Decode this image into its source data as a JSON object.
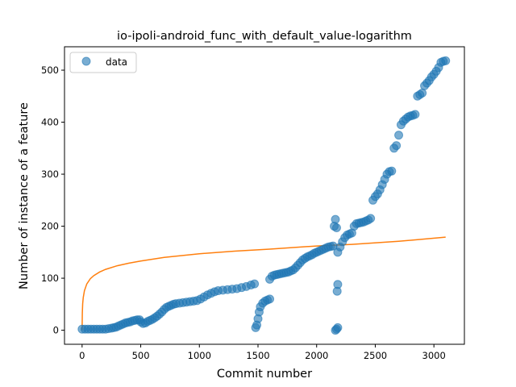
{
  "chart_data": {
    "type": "scatter",
    "title": "io-ipoli-android_func_with_default_value-logarithm",
    "xlabel": "Commit number",
    "ylabel": "Number of instance of a feature",
    "xlim": [
      -150,
      3260
    ],
    "ylim": [
      -27,
      545
    ],
    "x_ticks": [
      0,
      500,
      1000,
      1500,
      2000,
      2500,
      3000
    ],
    "y_ticks": [
      0,
      100,
      200,
      300,
      400,
      500
    ],
    "grid": false,
    "legend": {
      "position": "upper-left",
      "entries": [
        {
          "label": "data",
          "marker": "circle",
          "color": "#1f77b4"
        }
      ]
    },
    "colors": {
      "data": "#1f77b4",
      "fit": "#ff7f0e"
    },
    "series": [
      {
        "name": "data",
        "kind": "scatter",
        "points": [
          [
            0,
            2
          ],
          [
            25,
            2
          ],
          [
            50,
            2
          ],
          [
            75,
            2
          ],
          [
            100,
            2
          ],
          [
            125,
            2
          ],
          [
            150,
            2
          ],
          [
            175,
            2
          ],
          [
            200,
            2
          ],
          [
            225,
            3
          ],
          [
            250,
            4
          ],
          [
            270,
            5
          ],
          [
            290,
            6
          ],
          [
            310,
            8
          ],
          [
            330,
            10
          ],
          [
            350,
            12
          ],
          [
            370,
            14
          ],
          [
            390,
            15
          ],
          [
            410,
            16
          ],
          [
            430,
            18
          ],
          [
            450,
            19
          ],
          [
            470,
            20
          ],
          [
            490,
            20
          ],
          [
            500,
            16
          ],
          [
            520,
            13
          ],
          [
            540,
            14
          ],
          [
            560,
            17
          ],
          [
            580,
            19
          ],
          [
            600,
            21
          ],
          [
            620,
            24
          ],
          [
            640,
            27
          ],
          [
            660,
            31
          ],
          [
            680,
            35
          ],
          [
            700,
            40
          ],
          [
            720,
            44
          ],
          [
            740,
            46
          ],
          [
            760,
            48
          ],
          [
            780,
            50
          ],
          [
            800,
            51
          ],
          [
            830,
            52
          ],
          [
            860,
            53
          ],
          [
            890,
            54
          ],
          [
            920,
            55
          ],
          [
            950,
            56
          ],
          [
            980,
            57
          ],
          [
            1010,
            60
          ],
          [
            1040,
            64
          ],
          [
            1070,
            68
          ],
          [
            1100,
            71
          ],
          [
            1130,
            74
          ],
          [
            1160,
            76
          ],
          [
            1200,
            77
          ],
          [
            1240,
            78
          ],
          [
            1280,
            79
          ],
          [
            1320,
            80
          ],
          [
            1360,
            82
          ],
          [
            1400,
            84
          ],
          [
            1440,
            87
          ],
          [
            1470,
            89
          ],
          [
            1480,
            5
          ],
          [
            1490,
            10
          ],
          [
            1500,
            22
          ],
          [
            1510,
            35
          ],
          [
            1520,
            45
          ],
          [
            1540,
            52
          ],
          [
            1560,
            56
          ],
          [
            1580,
            58
          ],
          [
            1600,
            60
          ],
          [
            1600,
            98
          ],
          [
            1620,
            104
          ],
          [
            1640,
            106
          ],
          [
            1660,
            107
          ],
          [
            1680,
            108
          ],
          [
            1700,
            109
          ],
          [
            1720,
            110
          ],
          [
            1740,
            111
          ],
          [
            1760,
            112
          ],
          [
            1780,
            114
          ],
          [
            1800,
            116
          ],
          [
            1820,
            120
          ],
          [
            1840,
            125
          ],
          [
            1860,
            130
          ],
          [
            1880,
            135
          ],
          [
            1900,
            138
          ],
          [
            1920,
            141
          ],
          [
            1940,
            143
          ],
          [
            1960,
            145
          ],
          [
            1980,
            148
          ],
          [
            2000,
            150
          ],
          [
            2020,
            152
          ],
          [
            2040,
            154
          ],
          [
            2060,
            156
          ],
          [
            2080,
            158
          ],
          [
            2100,
            160
          ],
          [
            2120,
            161
          ],
          [
            2140,
            162
          ],
          [
            2150,
            200
          ],
          [
            2160,
            213
          ],
          [
            2170,
            197
          ],
          [
            2160,
            0
          ],
          [
            2170,
            2
          ],
          [
            2180,
            5
          ],
          [
            2175,
            75
          ],
          [
            2180,
            88
          ],
          [
            2180,
            150
          ],
          [
            2200,
            160
          ],
          [
            2220,
            170
          ],
          [
            2240,
            178
          ],
          [
            2260,
            183
          ],
          [
            2280,
            185
          ],
          [
            2300,
            187
          ],
          [
            2320,
            200
          ],
          [
            2340,
            205
          ],
          [
            2360,
            206
          ],
          [
            2380,
            207
          ],
          [
            2400,
            208
          ],
          [
            2420,
            210
          ],
          [
            2440,
            212
          ],
          [
            2460,
            215
          ],
          [
            2480,
            250
          ],
          [
            2500,
            257
          ],
          [
            2520,
            262
          ],
          [
            2540,
            270
          ],
          [
            2560,
            280
          ],
          [
            2580,
            290
          ],
          [
            2600,
            300
          ],
          [
            2620,
            305
          ],
          [
            2640,
            306
          ],
          [
            2660,
            350
          ],
          [
            2680,
            355
          ],
          [
            2700,
            375
          ],
          [
            2720,
            395
          ],
          [
            2740,
            402
          ],
          [
            2760,
            406
          ],
          [
            2780,
            410
          ],
          [
            2800,
            412
          ],
          [
            2820,
            413
          ],
          [
            2840,
            415
          ],
          [
            2860,
            450
          ],
          [
            2880,
            453
          ],
          [
            2900,
            456
          ],
          [
            2920,
            470
          ],
          [
            2940,
            475
          ],
          [
            2960,
            480
          ],
          [
            2980,
            487
          ],
          [
            3000,
            492
          ],
          [
            3020,
            498
          ],
          [
            3040,
            505
          ],
          [
            3060,
            515
          ],
          [
            3080,
            517
          ],
          [
            3100,
            518
          ]
        ]
      },
      {
        "kind": "line",
        "function": "logarithmic",
        "x_range": [
          0,
          3100
        ],
        "points": [
          [
            0,
            0
          ],
          [
            2,
            33
          ],
          [
            5,
            51
          ],
          [
            10,
            63
          ],
          [
            20,
            76
          ],
          [
            40,
            89
          ],
          [
            70,
            99
          ],
          [
            100,
            105
          ],
          [
            150,
            112
          ],
          [
            200,
            117
          ],
          [
            300,
            124
          ],
          [
            400,
            129
          ],
          [
            500,
            133
          ],
          [
            700,
            140
          ],
          [
            1000,
            147
          ],
          [
            1300,
            152
          ],
          [
            1600,
            156
          ],
          [
            2000,
            162
          ],
          [
            2300,
            165
          ],
          [
            2700,
            171
          ],
          [
            3100,
            179
          ]
        ]
      }
    ]
  }
}
